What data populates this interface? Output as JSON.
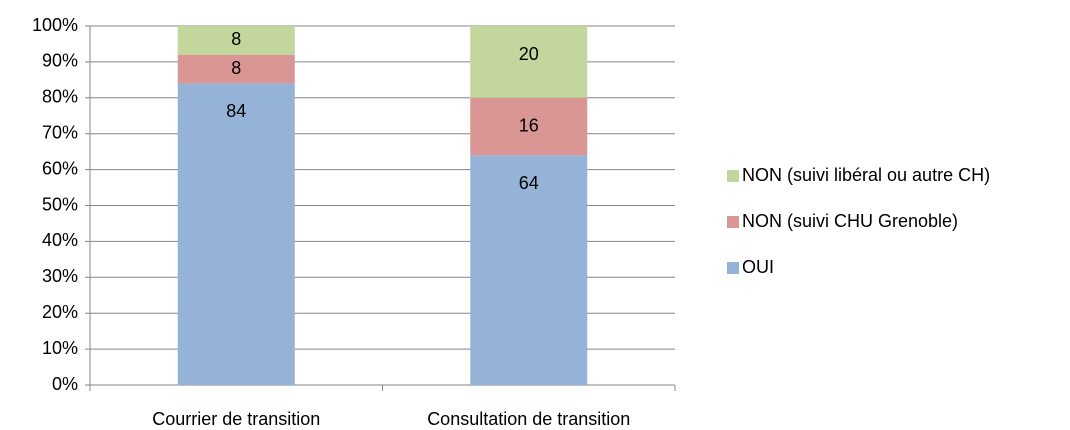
{
  "chart_data": {
    "type": "stacked_bar",
    "categories": [
      "Courrier de transition",
      "Consultation de transition"
    ],
    "series": [
      {
        "name": "OUI",
        "color": "#95b3d7",
        "values": [
          84,
          64
        ]
      },
      {
        "name": "NON (suivi CHU Grenoble)",
        "color": "#da9694",
        "values": [
          8,
          16
        ]
      },
      {
        "name": "NON (suivi libéral ou autre CH)",
        "color": "#c3d69b",
        "values": [
          8,
          20
        ]
      }
    ],
    "ylim": [
      0,
      100
    ],
    "yticks": [
      {
        "value": 0,
        "label": "0%"
      },
      {
        "value": 10,
        "label": "10%"
      },
      {
        "value": 20,
        "label": "20%"
      },
      {
        "value": 30,
        "label": "30%"
      },
      {
        "value": 40,
        "label": "40%"
      },
      {
        "value": 50,
        "label": "50%"
      },
      {
        "value": 60,
        "label": "60%"
      },
      {
        "value": 70,
        "label": "70%"
      },
      {
        "value": 80,
        "label": "80%"
      },
      {
        "value": 90,
        "label": "90%"
      },
      {
        "value": 100,
        "label": "100%"
      }
    ],
    "grid": true,
    "legend": "right"
  }
}
